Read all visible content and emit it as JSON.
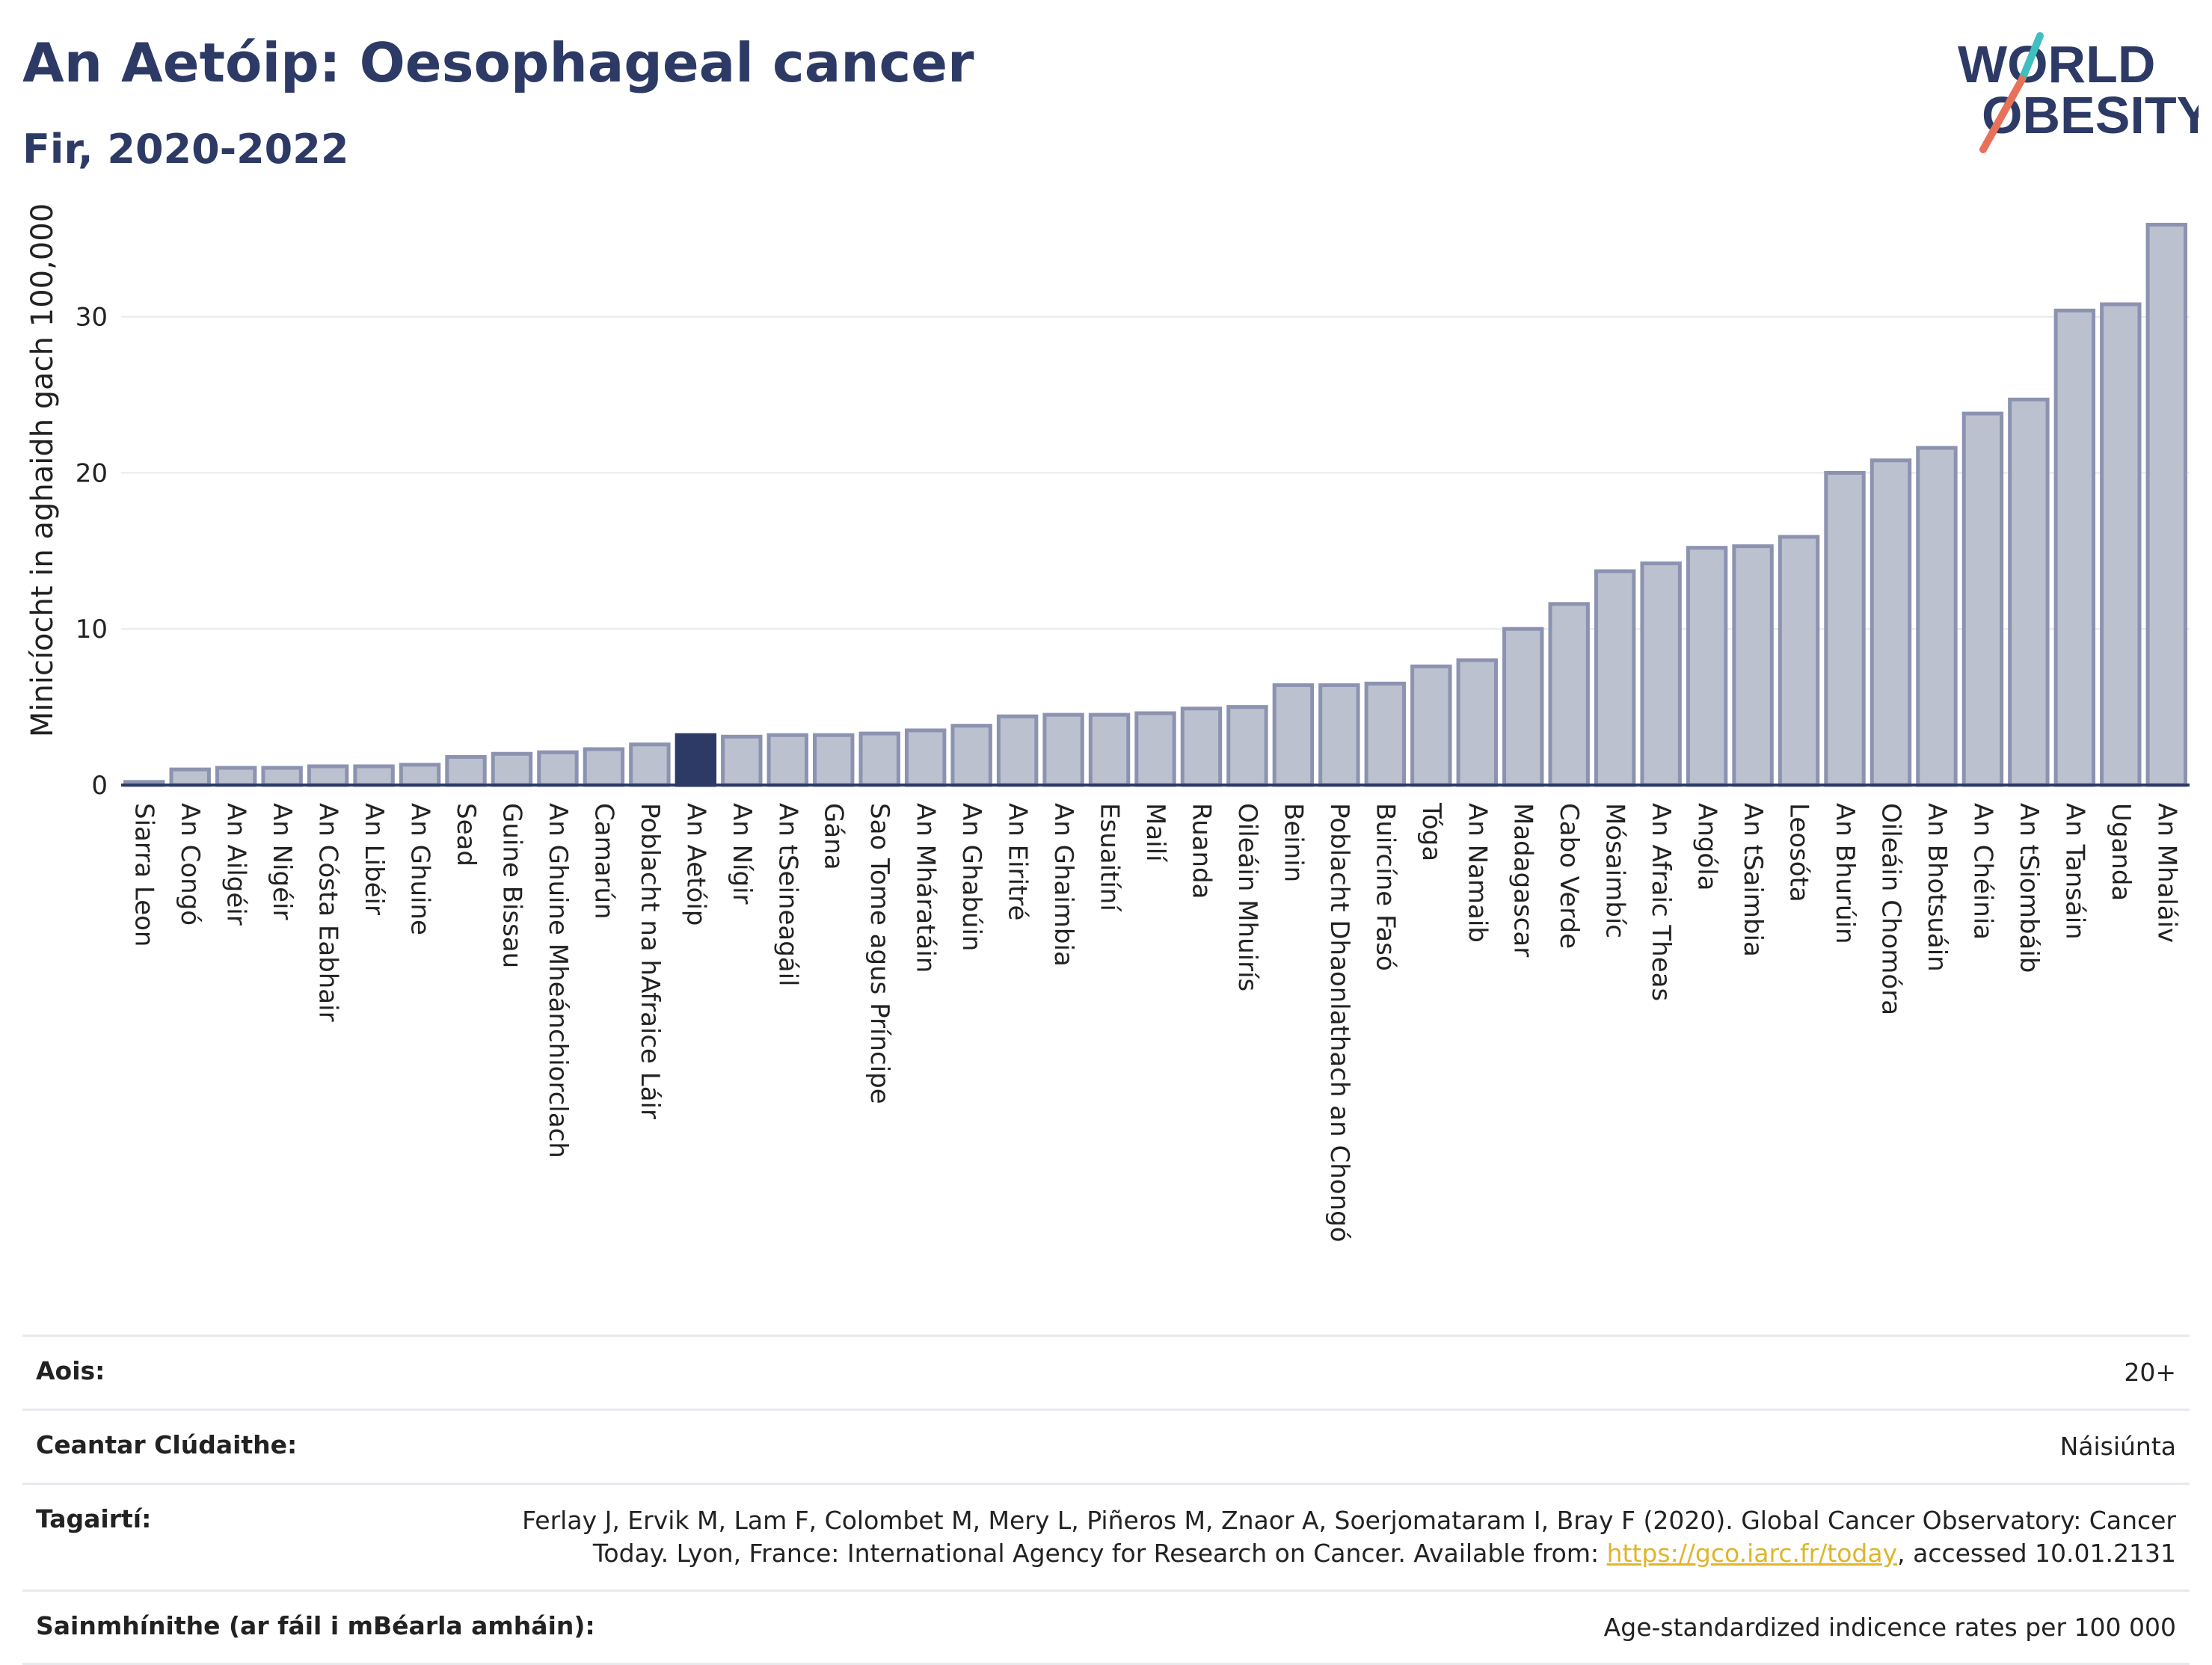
{
  "header": {
    "title": "An Aetóip: Oesophageal cancer",
    "subtitle": "Fir, 2020-2022"
  },
  "logo": {
    "line1": "WORLD",
    "line2": "OBESITY",
    "accent_colors": [
      "#3fbfbf",
      "#e8715a"
    ],
    "text_color": "#2d3a66"
  },
  "colors": {
    "bar_fill": "#bcc1d0",
    "bar_stroke": "#8c93b0",
    "highlight_fill": "#2d3a66",
    "axis": "#2d3a66",
    "grid": "#e6e9ef"
  },
  "chart_data": {
    "type": "bar",
    "ylabel": "Minicíocht in aghaidh gach 100,000",
    "ylim": [
      0,
      36.5
    ],
    "yticks": [
      0,
      10,
      20,
      30
    ],
    "grid": true,
    "highlight": "An Aetóip",
    "categories": [
      "Siarra Leon",
      "An Congó",
      "An Ailgéir",
      "An Nigéir",
      "An Cósta Eabhair",
      "An Libéir",
      "An Ghuine",
      "Sead",
      "Guine Bissau",
      "An Ghuine Mheánchiorclach",
      "Camarún",
      "Poblacht na hAfraice Láir",
      "An Aetóip",
      "An Nígir",
      "An tSeineagáil",
      "Gána",
      "Sao Tome agus Príncipe",
      "An Mháratáin",
      "An Ghabúin",
      "An Eiritré",
      "An Ghaimbia",
      "Esuaitíní",
      "Mailí",
      "Ruanda",
      "Oileáin Mhuirís",
      "Beinin",
      "Poblacht Dhaonlathach an Chongó",
      "Buircíne Fasó",
      "Tóga",
      "An Namaib",
      "Madagascar",
      "Cabo Verde",
      "Mósaimbíc",
      "An Afraic Theas",
      "Angóla",
      "An tSaimbia",
      "Leosóta",
      "An Bhurúin",
      "Oileáin Chomóra",
      "An Bhotsuáin",
      "An Chéinia",
      "An tSiombáib",
      "An Tansáin",
      "Uganda",
      "An Mhaláiv"
    ],
    "values": [
      0.2,
      1.0,
      1.1,
      1.1,
      1.2,
      1.2,
      1.3,
      1.8,
      2.0,
      2.1,
      2.3,
      2.6,
      3.2,
      3.1,
      3.2,
      3.2,
      3.3,
      3.5,
      3.8,
      4.4,
      4.5,
      4.5,
      4.6,
      4.9,
      5.0,
      6.4,
      6.4,
      6.5,
      7.6,
      8.0,
      10.0,
      11.6,
      13.7,
      14.2,
      15.2,
      15.3,
      15.9,
      20.0,
      20.8,
      21.6,
      23.8,
      24.7,
      30.4,
      30.8,
      35.9
    ]
  },
  "info": {
    "age_label": "Aois:",
    "age_value": "20+",
    "coverage_label": "Ceantar Clúdaithe:",
    "coverage_value": "Náisiúnta",
    "references_label": "Tagairtí:",
    "references_text_1": "Ferlay J, Ervik M, Lam F, Colombet M, Mery L, Piñeros M, Znaor A, Soerjomataram I, Bray F (2020). Global Cancer Observatory: Cancer",
    "references_text_2": "Today. Lyon, France: International Agency for Research on Cancer. Available from: ",
    "references_url": "https://gco.iarc.fr/today",
    "references_text_3": ", accessed 10.01.2131",
    "definitions_label": "Sainmhínithe (ar fáil i mBéarla amháin):",
    "definitions_value": "Age-standardized indicence rates per 100 000"
  }
}
